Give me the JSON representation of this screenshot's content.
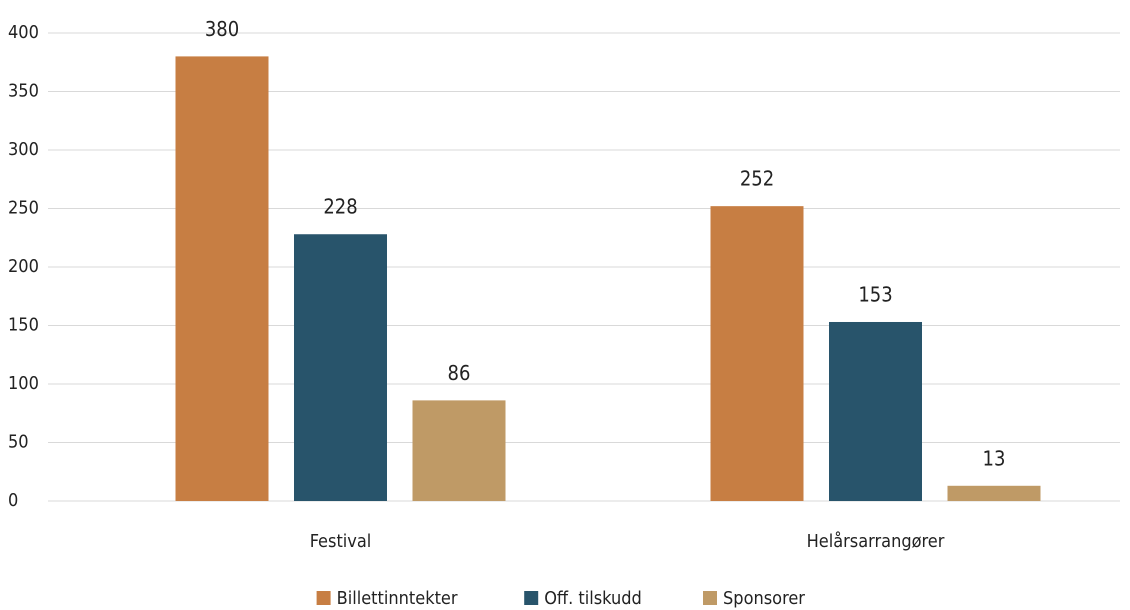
{
  "chart_data": {
    "type": "bar",
    "categories": [
      "Festival",
      "Helårsarrangører"
    ],
    "series": [
      {
        "name": "Billettinntekter",
        "color": "#c77e43",
        "values": [
          380,
          252
        ]
      },
      {
        "name": "Off. tilskudd",
        "color": "#28546b",
        "values": [
          228,
          153
        ]
      },
      {
        "name": "Sponsorer",
        "color": "#bf9a66",
        "values": [
          86,
          13
        ]
      }
    ],
    "ylim": [
      0,
      400
    ],
    "yticks": [
      0,
      50,
      100,
      150,
      200,
      250,
      300,
      350,
      400
    ],
    "grid": true,
    "legend": "bottom"
  }
}
